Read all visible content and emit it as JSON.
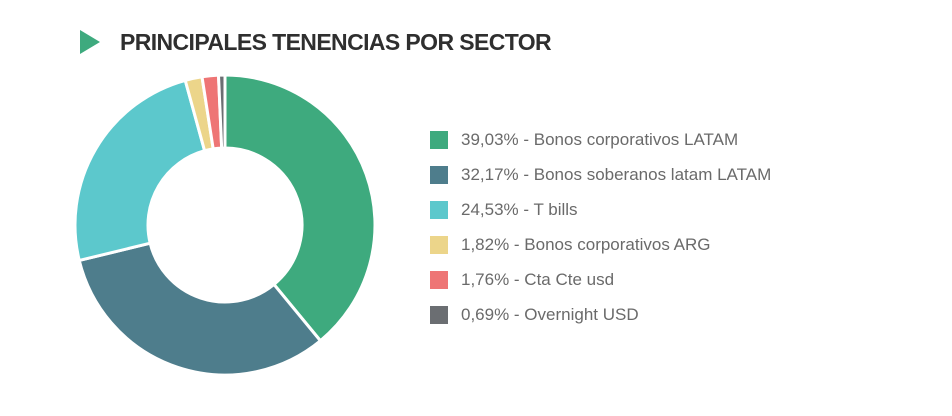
{
  "header": {
    "title": "PRINCIPALES TENENCIAS POR SECTOR",
    "icon": "play-arrow-icon",
    "accent_color": "#3eaa7e"
  },
  "chart_data": {
    "type": "pie",
    "title": "PRINCIPALES TENENCIAS POR SECTOR",
    "donut": true,
    "legend_position": "right",
    "slices": [
      {
        "label": "39,03% - Bonos corporativos LATAM",
        "name": "Bonos corporativos LATAM",
        "value": 39.03,
        "color": "#3eaa7e"
      },
      {
        "label": "32,17% - Bonos soberanos latam LATAM",
        "name": "Bonos soberanos latam LATAM",
        "value": 32.17,
        "color": "#4e7d8c"
      },
      {
        "label": "24,53% - T bills",
        "name": "T bills",
        "value": 24.53,
        "color": "#5cc8cc"
      },
      {
        "label": "1,82% - Bonos corporativos ARG",
        "name": "Bonos corporativos ARG",
        "value": 1.82,
        "color": "#ecd58a"
      },
      {
        "label": "1,76% - Cta Cte usd",
        "name": "Cta Cte usd",
        "value": 1.76,
        "color": "#ee7575"
      },
      {
        "label": "0,69% - Overnight USD",
        "name": "Overnight USD",
        "value": 0.69,
        "color": "#6b6e72"
      }
    ]
  }
}
